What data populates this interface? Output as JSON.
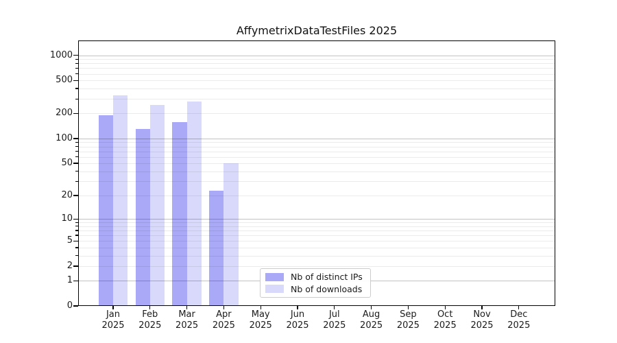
{
  "title": "AffymetrixDataTestFiles 2025",
  "chart_data": {
    "type": "bar",
    "title": "AffymetrixDataTestFiles 2025",
    "categories": [
      "Jan 2025",
      "Feb 2025",
      "Mar 2025",
      "Apr 2025",
      "May 2025",
      "Jun 2025",
      "Jul 2025",
      "Aug 2025",
      "Sep 2025",
      "Oct 2025",
      "Nov 2025",
      "Dec 2025"
    ],
    "series": [
      {
        "name": "Nb of distinct IPs",
        "color": "#a9a9f8",
        "values": [
          190,
          130,
          158,
          23,
          null,
          null,
          null,
          null,
          null,
          null,
          null,
          null
        ]
      },
      {
        "name": "Nb of downloads",
        "color": "#d9d9fb",
        "values": [
          330,
          255,
          280,
          50,
          null,
          null,
          null,
          null,
          null,
          null,
          null,
          null
        ]
      }
    ],
    "y_axis": {
      "scale": "log-like (positions follow log10(value+1), 0 shown at baseline)",
      "labeled_ticks": [
        1000,
        500,
        200,
        100,
        50,
        20,
        10,
        5,
        2,
        1,
        0
      ],
      "major_grid_ticks": [
        1,
        10,
        100,
        1000
      ],
      "minor_unlabeled_ticks": [
        3,
        4,
        6,
        7,
        8,
        9,
        30,
        40,
        60,
        70,
        80,
        90,
        300,
        400,
        600,
        700,
        800,
        900
      ],
      "ylim": [
        0,
        1450
      ]
    },
    "x_axis": {
      "months": [
        {
          "label": "Jan",
          "year": "2025"
        },
        {
          "label": "Feb",
          "year": "2025"
        },
        {
          "label": "Mar",
          "year": "2025"
        },
        {
          "label": "Apr",
          "year": "2025"
        },
        {
          "label": "May",
          "year": "2025"
        },
        {
          "label": "Jun",
          "year": "2025"
        },
        {
          "label": "Jul",
          "year": "2025"
        },
        {
          "label": "Aug",
          "year": "2025"
        },
        {
          "label": "Sep",
          "year": "2025"
        },
        {
          "label": "Oct",
          "year": "2025"
        },
        {
          "label": "Nov",
          "year": "2025"
        },
        {
          "label": "Dec",
          "year": "2025"
        }
      ]
    },
    "grid": true,
    "legend_position": "lower center-left, inside plot"
  },
  "legend": {
    "items": [
      {
        "label": "Nb of distinct IPs",
        "color": "#a9a9f8"
      },
      {
        "label": "Nb of downloads",
        "color": "#d9d9fb"
      }
    ]
  },
  "colors": {
    "bar_distinct_ips": "#a9a9f8",
    "bar_downloads": "#d9d9fb",
    "grid_major": "rgba(0,0,0,0.24)",
    "grid_minor": "rgba(0,0,0,0.08)",
    "spine": "#000000",
    "text": "#1a1a1a",
    "legend_border": "#cccccc",
    "background": "#ffffff"
  }
}
